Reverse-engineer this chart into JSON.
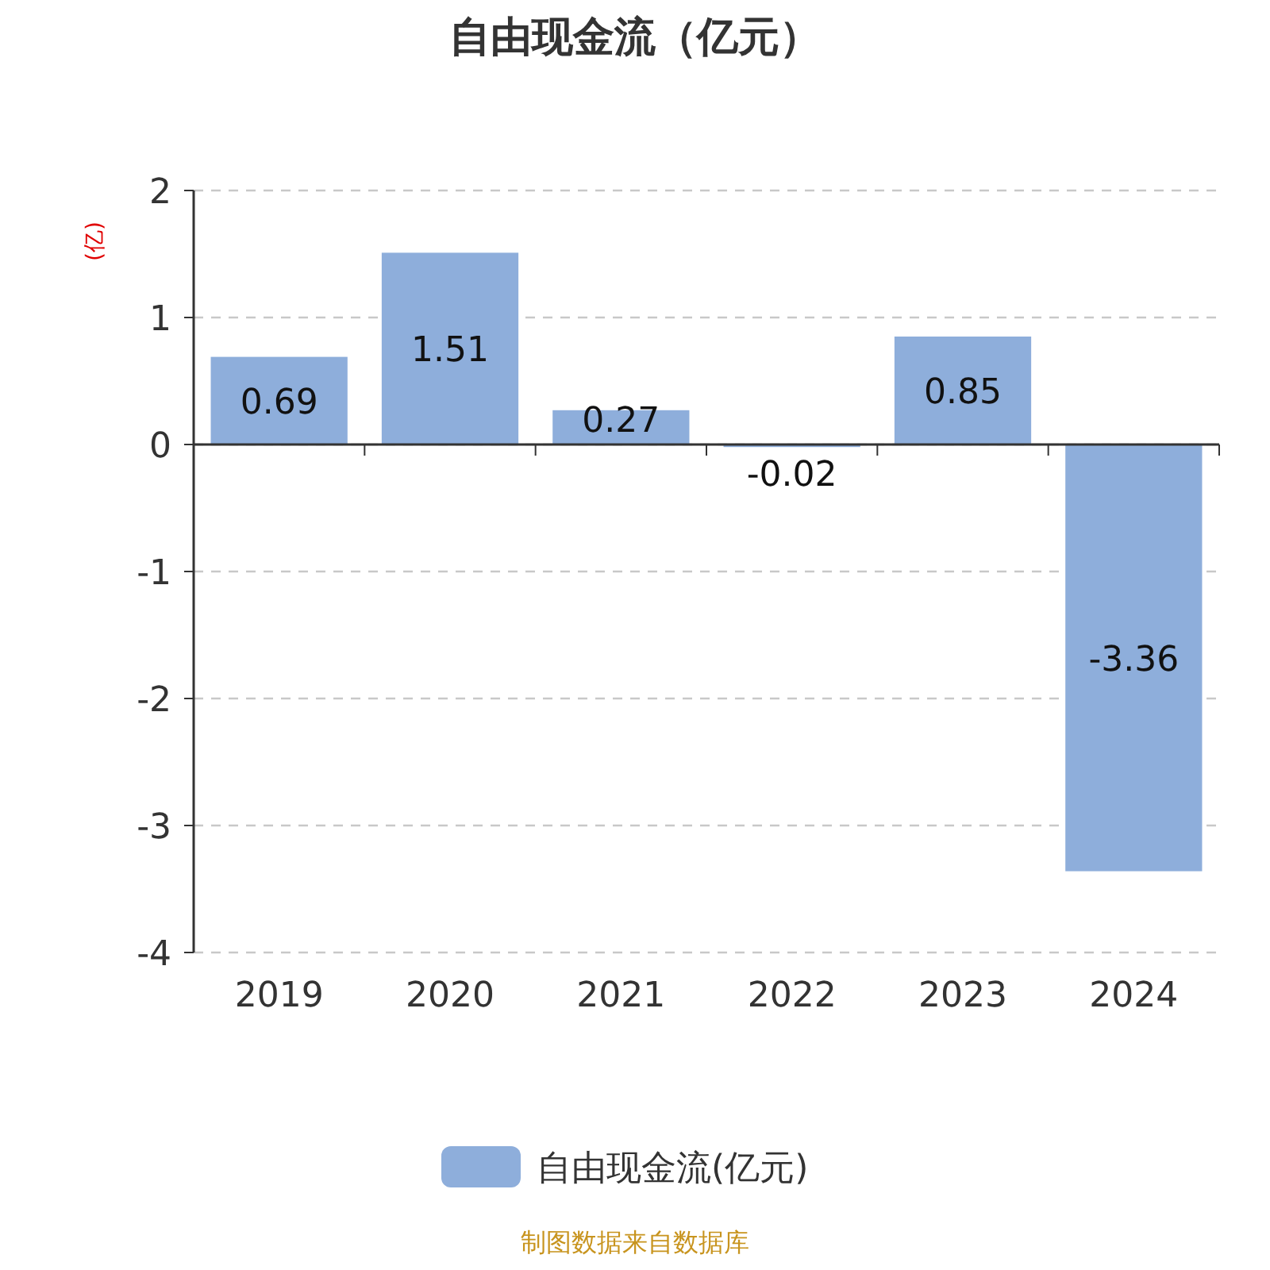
{
  "chart_data": {
    "type": "bar",
    "title": "自由现金流（亿元）",
    "ylabel": "(亿)",
    "categories": [
      "2019",
      "2020",
      "2021",
      "2022",
      "2023",
      "2024"
    ],
    "series": [
      {
        "name": "自由现金流(亿元)",
        "color": "#8eaedb",
        "values": [
          0.69,
          1.51,
          0.27,
          -0.02,
          0.85,
          -3.36
        ]
      }
    ],
    "ylim": [
      -4,
      2
    ],
    "yticks": [
      -4,
      -3,
      -2,
      -1,
      0,
      1,
      2
    ],
    "grid": "y",
    "legend": "bottom",
    "data_labels": true,
    "annotations": [
      "制图数据来自数据库"
    ]
  }
}
